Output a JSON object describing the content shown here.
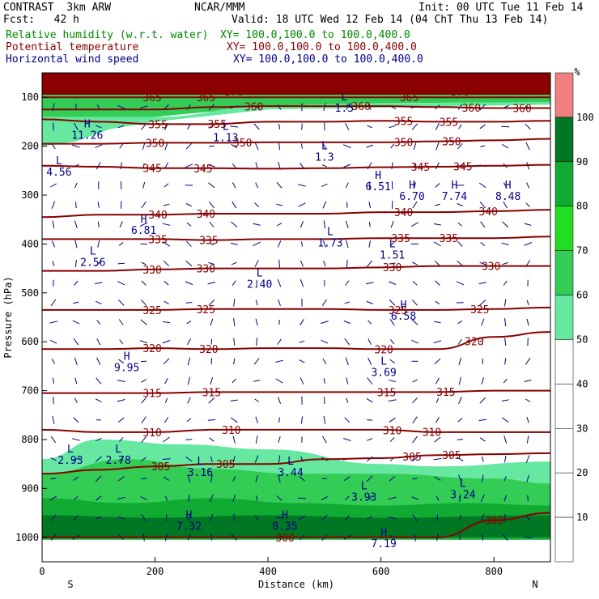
{
  "header": {
    "model": "CONTRAST  3km ARW",
    "center": "NCAR/MMM",
    "init": "Init: 00 UTC Tue 11 Feb 14",
    "fcst": "Fcst:   42 h",
    "valid": "Valid: 18 UTC Wed 12 Feb 14 (04 ChT Thu 13 Feb 14)",
    "fields": [
      {
        "name": "Relative humidity (w.r.t. water)",
        "xy": "XY= 100.0,100.0 to 100.0,400.0",
        "color": "#008800"
      },
      {
        "name": "Potential temperature",
        "xy": "XY= 100.0,100.0 to 100.0,400.0",
        "color": "#880000"
      },
      {
        "name": "Horizontal wind speed",
        "xy": "XY= 100.0,100.0 to 100.0,400.0",
        "color": "#000088"
      }
    ]
  },
  "chart_data": {
    "type": "cross-section",
    "xlabel": "Distance (km)",
    "ylabel": "Pressure (hPa)",
    "xlim": [
      0,
      900
    ],
    "ylim": [
      1050,
      50
    ],
    "x_ticks": [
      "0",
      "200",
      "400",
      "600",
      "800"
    ],
    "x_tick_values": [
      0,
      200,
      400,
      600,
      800
    ],
    "y_ticks": [
      "100",
      "200",
      "300",
      "400",
      "500",
      "600",
      "700",
      "800",
      "900",
      "1000"
    ],
    "y_tick_values": [
      100,
      200,
      300,
      400,
      500,
      600,
      700,
      800,
      900,
      1000
    ],
    "x_end_labels": {
      "left": "S",
      "right": "N"
    },
    "colorbar": {
      "unit": "%",
      "levels": [
        10,
        20,
        30,
        40,
        50,
        60,
        70,
        80,
        90,
        100
      ],
      "colors": [
        "#ffffff",
        "#ffffff",
        "#ffffff",
        "#ffffff",
        "#ffffff",
        "#66e8a0",
        "#33cc55",
        "#22dd22",
        "#11aa33",
        "#007722",
        "#f08080"
      ]
    },
    "theta_contours": [
      {
        "label": "370",
        "p": [
          88,
          88,
          88,
          88,
          88,
          88,
          88,
          88,
          88,
          88
        ],
        "label_x": [
          340,
          740
        ]
      },
      {
        "label": "365",
        "p": [
          100,
          100,
          100,
          100,
          100,
          100,
          100,
          100,
          100,
          100
        ],
        "label_x": [
          195,
          290,
          650
        ]
      },
      {
        "label": "360",
        "p": [
          125,
          125,
          125,
          120,
          118,
          118,
          118,
          120,
          122,
          122
        ],
        "label_x": [
          375,
          565,
          760,
          850
        ]
      },
      {
        "label": "355",
        "p": [
          145,
          150,
          155,
          155,
          150,
          150,
          148,
          150,
          150,
          148
        ],
        "label_x": [
          205,
          310,
          640,
          720
        ]
      },
      {
        "label": "350",
        "p": [
          195,
          195,
          193,
          193,
          192,
          192,
          192,
          190,
          188,
          185
        ],
        "label_x": [
          200,
          355,
          640,
          725
        ]
      },
      {
        "label": "345",
        "p": [
          240,
          242,
          245,
          245,
          246,
          245,
          243,
          242,
          240,
          238
        ],
        "label_x": [
          195,
          285,
          670,
          745
        ]
      },
      {
        "label": "340",
        "p": [
          345,
          340,
          340,
          338,
          338,
          338,
          335,
          335,
          333,
          330
        ],
        "label_x": [
          205,
          290,
          640,
          790
        ]
      },
      {
        "label": "335",
        "p": [
          390,
          390,
          390,
          392,
          390,
          390,
          388,
          388,
          388,
          385
        ],
        "label_x": [
          205,
          295,
          635,
          720
        ]
      },
      {
        "label": "330",
        "p": [
          455,
          455,
          452,
          450,
          450,
          450,
          448,
          445,
          445,
          445
        ],
        "label_x": [
          195,
          290,
          620,
          795
        ]
      },
      {
        "label": "325",
        "p": [
          535,
          535,
          535,
          533,
          533,
          533,
          535,
          535,
          533,
          530
        ],
        "label_x": [
          195,
          290,
          630,
          775
        ]
      },
      {
        "label": "320",
        "p": [
          615,
          615,
          613,
          615,
          613,
          613,
          615,
          615,
          590,
          580
        ],
        "label_x": [
          195,
          295,
          605,
          765
        ]
      },
      {
        "label": "315",
        "p": [
          705,
          705,
          705,
          703,
          703,
          703,
          703,
          703,
          700,
          700
        ],
        "label_x": [
          195,
          300,
          610,
          715
        ]
      },
      {
        "label": "310",
        "p": [
          780,
          785,
          785,
          780,
          780,
          780,
          780,
          785,
          785,
          785
        ],
        "label_x": [
          195,
          335,
          620,
          690
        ]
      },
      {
        "label": "305",
        "p": [
          870,
          862,
          855,
          850,
          850,
          840,
          838,
          832,
          830,
          828
        ],
        "label_x": [
          210,
          325,
          655,
          725
        ]
      },
      {
        "label": "300",
        "p": [
          1000,
          1000,
          1000,
          1000,
          1000,
          1000,
          1000,
          1000,
          965,
          950
        ],
        "label_x": [
          430,
          800
        ]
      }
    ],
    "wind_extrema": [
      {
        "type": "H",
        "value": "11.26",
        "x": 80,
        "p": 165
      },
      {
        "type": "L",
        "value": "4.56",
        "x": 30,
        "p": 240
      },
      {
        "type": "L",
        "value": "1.13",
        "x": 325,
        "p": 170
      },
      {
        "type": "L",
        "value": "1.3",
        "x": 500,
        "p": 210
      },
      {
        "type": "L",
        "value": "1.5",
        "x": 535,
        "p": 110
      },
      {
        "type": "H",
        "value": "6.51",
        "x": 595,
        "p": 270
      },
      {
        "type": "H",
        "value": "6.70",
        "x": 655,
        "p": 290
      },
      {
        "type": "H",
        "value": "7.74",
        "x": 730,
        "p": 290
      },
      {
        "type": "H",
        "value": "8.48",
        "x": 825,
        "p": 290
      },
      {
        "type": "H",
        "value": "6.81",
        "x": 180,
        "p": 360
      },
      {
        "type": "L",
        "value": "1.73",
        "x": 510,
        "p": 385
      },
      {
        "type": "L",
        "value": "1.51",
        "x": 620,
        "p": 410
      },
      {
        "type": "L",
        "value": "2.56",
        "x": 90,
        "p": 425
      },
      {
        "type": "L",
        "value": "2.40",
        "x": 385,
        "p": 470
      },
      {
        "type": "H",
        "value": "6.58",
        "x": 640,
        "p": 535
      },
      {
        "type": "H",
        "value": "9.95",
        "x": 150,
        "p": 640
      },
      {
        "type": "L",
        "value": "3.69",
        "x": 605,
        "p": 650
      },
      {
        "type": "L",
        "value": "2.93",
        "x": 50,
        "p": 830
      },
      {
        "type": "L",
        "value": "2.78",
        "x": 135,
        "p": 830
      },
      {
        "type": "L",
        "value": "3.16",
        "x": 280,
        "p": 855
      },
      {
        "type": "L",
        "value": "3.44",
        "x": 440,
        "p": 855
      },
      {
        "type": "L",
        "value": "3.93",
        "x": 570,
        "p": 905
      },
      {
        "type": "L",
        "value": "3.24",
        "x": 745,
        "p": 900
      },
      {
        "type": "H",
        "value": "7.32",
        "x": 260,
        "p": 965
      },
      {
        "type": "H",
        "value": "8.35",
        "x": 430,
        "p": 965
      },
      {
        "type": "H",
        "value": "7.19",
        "x": 605,
        "p": 1000
      }
    ]
  }
}
